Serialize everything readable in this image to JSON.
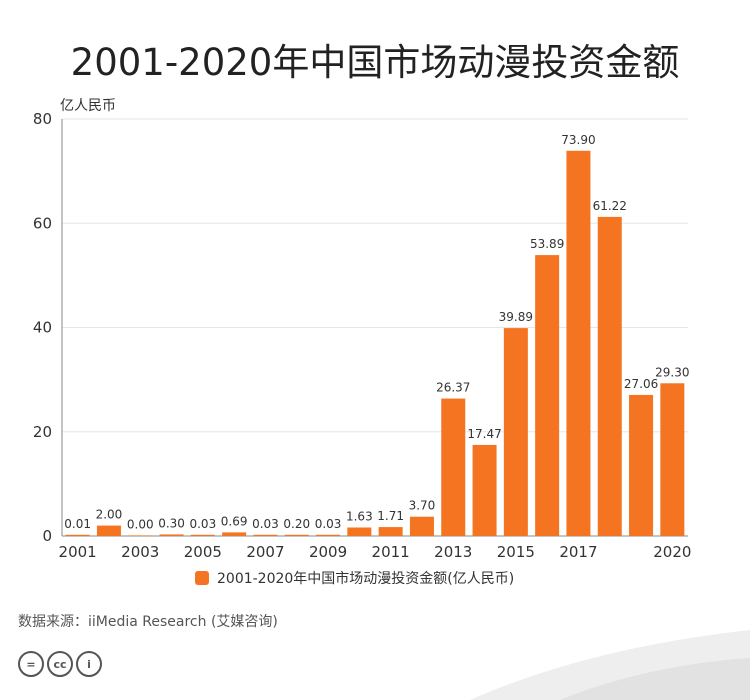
{
  "title": "2001-2020年中国市场动漫投资金额",
  "unit_label": "亿人民币",
  "legend_label": "2001-2020年中国市场动漫投资金额(亿人民币)",
  "source": "数据来源：iiMedia Research (艾媒咨询)",
  "license_icons": [
    "=",
    "cc",
    "i"
  ],
  "colors": {
    "bar": "#f47421",
    "axis": "#888888",
    "grid": "#e6e6e6"
  },
  "chart_data": {
    "type": "bar",
    "title": "2001-2020年中国市场动漫投资金额",
    "ylabel": "亿人民币",
    "xlabel": "",
    "ylim": [
      0,
      80
    ],
    "yticks": [
      0,
      20,
      40,
      60,
      80
    ],
    "categories": [
      "2001",
      "2002",
      "2003",
      "2004",
      "2005",
      "2006",
      "2007",
      "2008",
      "2009",
      "2010",
      "2011",
      "2012",
      "2013",
      "2014",
      "2015",
      "2016",
      "2017",
      "2018",
      "2019",
      "2020"
    ],
    "xtick_labels": [
      "2001",
      "2003",
      "2005",
      "2007",
      "2009",
      "2011",
      "2013",
      "2015",
      "2017",
      "2020"
    ],
    "values": [
      0.01,
      2.0,
      0.0,
      0.3,
      0.03,
      0.69,
      0.03,
      0.2,
      0.03,
      1.63,
      1.71,
      3.7,
      26.37,
      17.47,
      39.89,
      53.89,
      73.9,
      61.22,
      27.06,
      29.3
    ],
    "value_labels": [
      "0.01",
      "2.00",
      "0.00",
      "0.30",
      "0.03",
      "0.69",
      "0.03",
      "0.20",
      "0.03",
      "1.63",
      "1.71",
      "3.70",
      "26.37",
      "17.47",
      "39.89",
      "53.89",
      "73.90",
      "61.22",
      "27.06",
      "29.30"
    ],
    "legend": "bottom-center",
    "grid": true
  }
}
